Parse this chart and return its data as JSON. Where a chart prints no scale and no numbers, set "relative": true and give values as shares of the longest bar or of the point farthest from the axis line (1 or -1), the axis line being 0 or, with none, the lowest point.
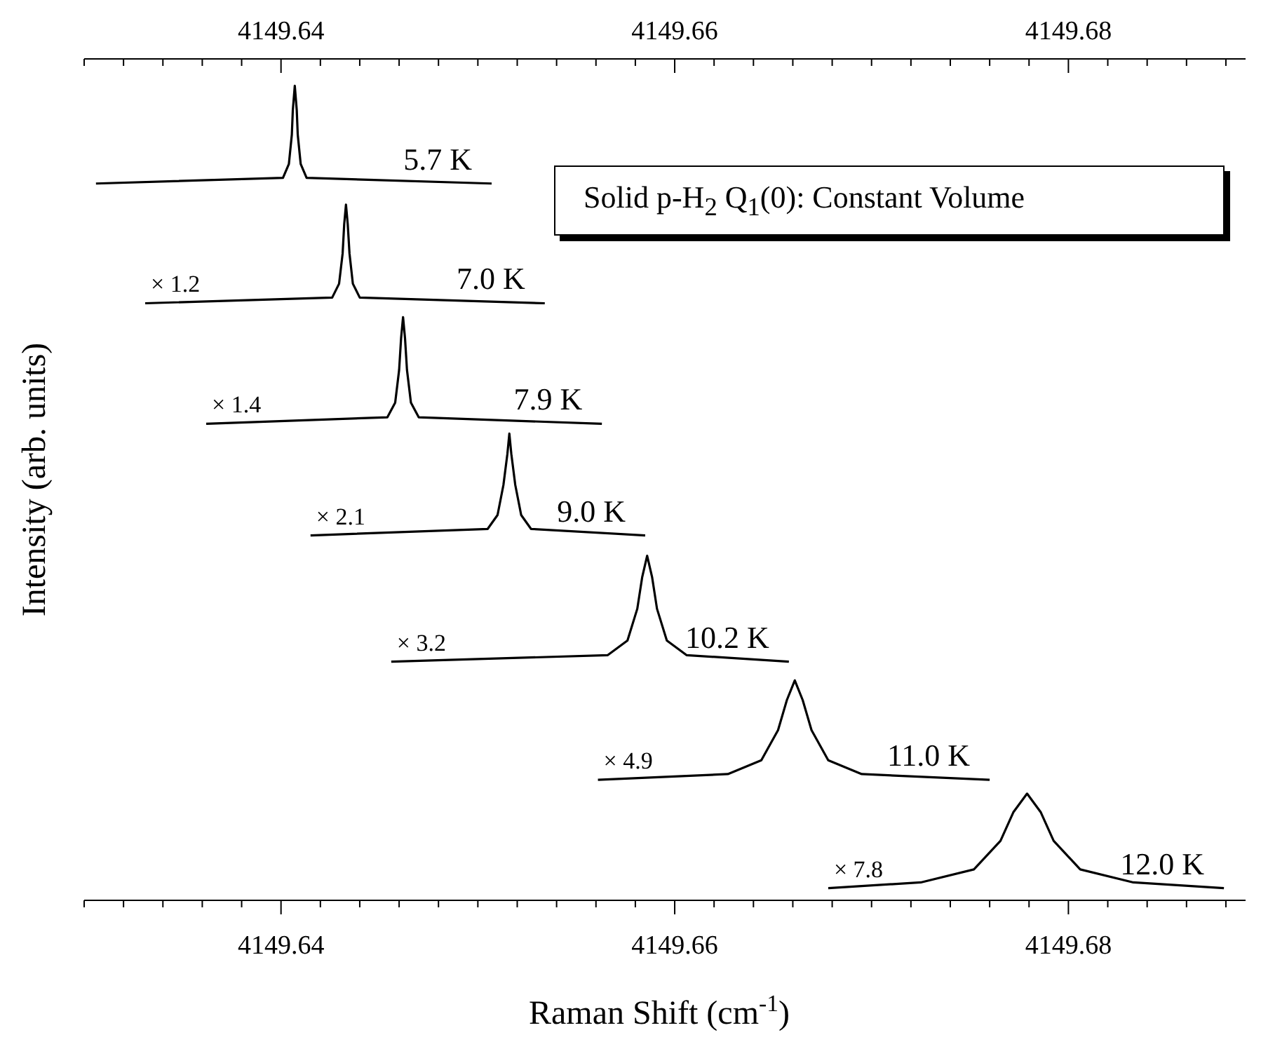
{
  "chart_data": {
    "type": "line",
    "title": "Solid p-H$_{2}$ Q$_{1}$(0): Constant Volume",
    "xlabel": "Raman Shift (cm$^{-1}$)",
    "ylabel": "Intensity (arb. units)",
    "relative": true,
    "xlim": [
      4149.63,
      4149.689
    ],
    "xticks": [
      {
        "value": 4149.63,
        "label": null
      },
      {
        "value": 4149.632,
        "label": null
      },
      {
        "value": 4149.634,
        "label": null
      },
      {
        "value": 4149.636,
        "label": null
      },
      {
        "value": 4149.638,
        "label": null
      },
      4149.64,
      {
        "value": 4149.642,
        "label": null
      },
      {
        "value": 4149.644,
        "label": null
      },
      {
        "value": 4149.646,
        "label": null
      },
      {
        "value": 4149.648,
        "label": null
      },
      {
        "value": 4149.65,
        "label": null
      },
      {
        "value": 4149.652,
        "label": null
      },
      {
        "value": 4149.654,
        "label": null
      },
      {
        "value": 4149.656,
        "label": null
      },
      {
        "value": 4149.658,
        "label": null
      },
      4149.66,
      {
        "value": 4149.662,
        "label": null
      },
      {
        "value": 4149.664,
        "label": null
      },
      {
        "value": 4149.666,
        "label": null
      },
      {
        "value": 4149.668,
        "label": null
      },
      {
        "value": 4149.67,
        "label": null
      },
      {
        "value": 4149.672,
        "label": null
      },
      {
        "value": 4149.674,
        "label": null
      },
      {
        "value": 4149.676,
        "label": null
      },
      {
        "value": 4149.678,
        "label": null
      },
      4149.68,
      {
        "value": 4149.682,
        "label": null
      },
      {
        "value": 4149.684,
        "label": null
      },
      {
        "value": 4149.686,
        "label": null
      },
      {
        "value": 4149.688,
        "label": null
      }
    ],
    "x2lim": [
      4149.63,
      4149.689
    ],
    "x2ticks": [
      {
        "value": 4149.63,
        "label": null
      },
      {
        "value": 4149.632,
        "label": null
      },
      {
        "value": 4149.634,
        "label": null
      },
      {
        "value": 4149.636,
        "label": null
      },
      {
        "value": 4149.638,
        "label": null
      },
      4149.64,
      {
        "value": 4149.642,
        "label": null
      },
      {
        "value": 4149.644,
        "label": null
      },
      {
        "value": 4149.646,
        "label": null
      },
      {
        "value": 4149.648,
        "label": null
      },
      {
        "value": 4149.65,
        "label": null
      },
      {
        "value": 4149.652,
        "label": null
      },
      {
        "value": 4149.654,
        "label": null
      },
      {
        "value": 4149.656,
        "label": null
      },
      {
        "value": 4149.658,
        "label": null
      },
      4149.66,
      {
        "value": 4149.662,
        "label": null
      },
      {
        "value": 4149.664,
        "label": null
      },
      {
        "value": 4149.666,
        "label": null
      },
      {
        "value": 4149.668,
        "label": null
      },
      {
        "value": 4149.67,
        "label": null
      },
      {
        "value": 4149.672,
        "label": null
      },
      {
        "value": 4149.674,
        "label": null
      },
      {
        "value": 4149.676,
        "label": null
      },
      {
        "value": 4149.678,
        "label": null
      },
      4149.68,
      {
        "value": 4149.682,
        "label": null
      },
      {
        "value": 4149.684,
        "label": null
      },
      {
        "value": 4149.686,
        "label": null
      },
      {
        "value": 4149.688,
        "label": null
      }
    ],
    "annotations": [
      {
        "text": "× 1.2",
        "x": 4149.6331,
        "y": 0.733
      },
      {
        "text": "× 1.4",
        "x": 4149.6362,
        "y": 0.585
      },
      {
        "text": "× 2.1",
        "x": 4149.6415,
        "y": 0.448
      },
      {
        "text": "× 3.2",
        "x": 4149.6456,
        "y": 0.293
      },
      {
        "text": "× 4.9",
        "x": 4149.6561,
        "y": 0.148
      },
      {
        "text": "× 7.8",
        "x": 4149.6678,
        "y": 0.015
      }
    ],
    "series": [
      {
        "name": "5.7 K",
        "color": "#000000",
        "x": [
          4149.6306,
          4149.6401,
          4149.6404,
          4149.64055,
          4149.6406,
          4149.6407,
          4149.6408,
          4149.64085,
          4149.641,
          4149.6413,
          4149.6507
        ],
        "values": [
          0.88,
          0.887,
          0.904,
          0.94,
          0.97,
          1.0,
          0.97,
          0.94,
          0.904,
          0.887,
          0.88
        ]
      },
      {
        "name": "7.0 K",
        "color": "#000000",
        "x": [
          4149.6331,
          4149.6426,
          4149.64295,
          4149.64313,
          4149.64321,
          4149.6433,
          4149.64339,
          4149.64348,
          4149.64365,
          4149.644,
          4149.6534
        ],
        "values": [
          0.733,
          0.74,
          0.757,
          0.794,
          0.83,
          0.854,
          0.83,
          0.794,
          0.757,
          0.74,
          0.733
        ]
      },
      {
        "name": "7.9 K",
        "color": "#000000",
        "x": [
          4149.6362,
          4149.6454,
          4149.6458,
          4149.646,
          4149.6461,
          4149.6462,
          4149.6463,
          4149.6464,
          4149.6466,
          4149.647,
          4149.6563
        ],
        "values": [
          0.585,
          0.593,
          0.611,
          0.651,
          0.69,
          0.716,
          0.69,
          0.651,
          0.611,
          0.593,
          0.585
        ]
      },
      {
        "name": "9.0 K",
        "color": "#000000",
        "x": [
          4149.6415,
          4149.6505,
          4149.651,
          4149.6513,
          4149.6515,
          4149.6516,
          4149.6517,
          4149.6519,
          4149.6522,
          4149.6527,
          4149.6585
        ],
        "values": [
          0.448,
          0.456,
          0.473,
          0.51,
          0.548,
          0.573,
          0.548,
          0.51,
          0.473,
          0.456,
          0.448
        ]
      },
      {
        "name": "10.2 K",
        "color": "#000000",
        "x": [
          4149.6456,
          4149.6566,
          4149.6576,
          4149.6581,
          4149.65835,
          4149.6586,
          4149.65885,
          4149.6591,
          4149.6596,
          4149.6606,
          4149.6658
        ],
        "values": [
          0.293,
          0.301,
          0.319,
          0.358,
          0.397,
          0.423,
          0.397,
          0.358,
          0.319,
          0.301,
          0.293
        ]
      },
      {
        "name": "11.0 K",
        "color": "#000000",
        "x": [
          4149.6561,
          4149.6627,
          4149.6644,
          4149.66525,
          4149.6657,
          4149.6661,
          4149.6665,
          4149.66695,
          4149.6678,
          4149.6695,
          4149.676
        ],
        "values": [
          0.148,
          0.155,
          0.172,
          0.209,
          0.246,
          0.27,
          0.246,
          0.209,
          0.172,
          0.155,
          0.148
        ]
      },
      {
        "name": "12.0 K",
        "color": "#000000",
        "x": [
          4149.6678,
          4149.6725,
          4149.6752,
          4149.67655,
          4149.6772,
          4149.6779,
          4149.6786,
          4149.67925,
          4149.6806,
          4149.6833,
          4149.6879
        ],
        "values": [
          0.015,
          0.022,
          0.038,
          0.073,
          0.108,
          0.131,
          0.108,
          0.073,
          0.038,
          0.022,
          0.015
        ]
      }
    ]
  }
}
